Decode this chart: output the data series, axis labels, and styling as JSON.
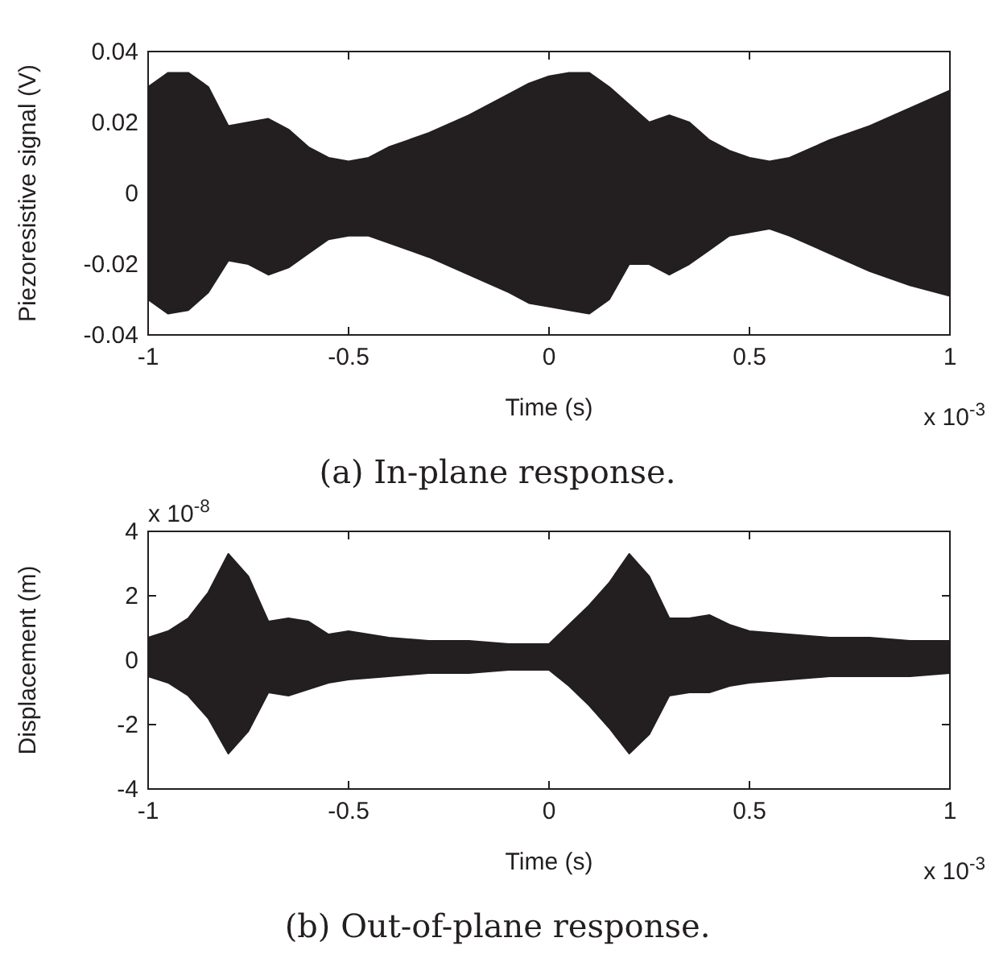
{
  "chart_data": [
    {
      "type": "area",
      "title": "(a) In-plane response.",
      "xlabel": "Time (s)",
      "ylabel": "Piezoresistive signal (V)",
      "annotations": [
        "x 10$^{-3}$"
      ],
      "x": [
        -1,
        -0.95,
        -0.9,
        -0.85,
        -0.8,
        -0.75,
        -0.7,
        -0.65,
        -0.6,
        -0.55,
        -0.5,
        -0.45,
        -0.4,
        -0.3,
        -0.2,
        -0.1,
        -0.05,
        0,
        0.05,
        0.1,
        0.15,
        0.2,
        0.25,
        0.3,
        0.35,
        0.4,
        0.45,
        0.5,
        0.55,
        0.6,
        0.7,
        0.8,
        0.9,
        1
      ],
      "series": [
        {
          "color": "#231f20",
          "values": [
            0.03,
            0.034,
            0.034,
            0.03,
            0.019,
            0.02,
            0.021,
            0.018,
            0.013,
            0.01,
            0.009,
            0.01,
            0.013,
            0.017,
            0.022,
            0.028,
            0.031,
            0.033,
            0.034,
            0.034,
            0.03,
            0.025,
            0.02,
            0.022,
            0.02,
            0.015,
            0.012,
            0.01,
            0.009,
            0.01,
            0.015,
            0.019,
            0.024,
            0.029
          ]
        },
        {
          "color": "#231f20",
          "values": [
            -0.03,
            -0.034,
            -0.033,
            -0.028,
            -0.019,
            -0.02,
            -0.023,
            -0.021,
            -0.017,
            -0.013,
            -0.012,
            -0.012,
            -0.014,
            -0.018,
            -0.023,
            -0.028,
            -0.031,
            -0.032,
            -0.033,
            -0.034,
            -0.03,
            -0.02,
            -0.02,
            -0.023,
            -0.02,
            -0.016,
            -0.012,
            -0.011,
            -0.01,
            -0.012,
            -0.017,
            -0.022,
            -0.026,
            -0.029
          ]
        }
      ],
      "xlim": [
        -1,
        1
      ],
      "xticks": [
        -1,
        -0.5,
        0,
        0.5,
        1
      ],
      "ylim": [
        -0.04,
        0.04
      ],
      "yticks": [
        -0.04,
        -0.02,
        0,
        0.02,
        0.04
      ],
      "grid": false
    },
    {
      "type": "area",
      "title": "(b) Out-of-plane response.",
      "xlabel": "Time (s)",
      "ylabel": "Displacement (m)",
      "annotations": [
        "x 10$^{-8}$",
        "x 10$^{-3}$"
      ],
      "x": [
        -1,
        -0.95,
        -0.9,
        -0.85,
        -0.8,
        -0.75,
        -0.7,
        -0.65,
        -0.6,
        -0.55,
        -0.5,
        -0.4,
        -0.3,
        -0.2,
        -0.1,
        0,
        0.05,
        0.1,
        0.15,
        0.2,
        0.25,
        0.3,
        0.35,
        0.4,
        0.45,
        0.5,
        0.6,
        0.7,
        0.8,
        0.9,
        1
      ],
      "series": [
        {
          "color": "#231f20",
          "values": [
            0.7,
            0.9,
            1.3,
            2.1,
            3.3,
            2.6,
            1.2,
            1.3,
            1.2,
            0.8,
            0.9,
            0.7,
            0.6,
            0.6,
            0.5,
            0.5,
            1.1,
            1.7,
            2.4,
            3.3,
            2.6,
            1.3,
            1.3,
            1.4,
            1.1,
            0.9,
            0.8,
            0.7,
            0.7,
            0.6,
            0.6
          ]
        },
        {
          "color": "#231f20",
          "values": [
            -0.5,
            -0.7,
            -1.1,
            -1.8,
            -2.9,
            -2.2,
            -1,
            -1.1,
            -0.9,
            -0.7,
            -0.6,
            -0.5,
            -0.4,
            -0.4,
            -0.3,
            -0.3,
            -0.8,
            -1.4,
            -2.1,
            -2.9,
            -2.3,
            -1.1,
            -1,
            -1,
            -0.8,
            -0.7,
            -0.6,
            -0.5,
            -0.5,
            -0.5,
            -0.4
          ]
        }
      ],
      "xlim": [
        -1,
        1
      ],
      "xticks": [
        -1,
        -0.5,
        0,
        0.5,
        1
      ],
      "ylim": [
        -4,
        4
      ],
      "yticks": [
        -4,
        -2,
        0,
        2,
        4
      ],
      "grid": false
    }
  ]
}
